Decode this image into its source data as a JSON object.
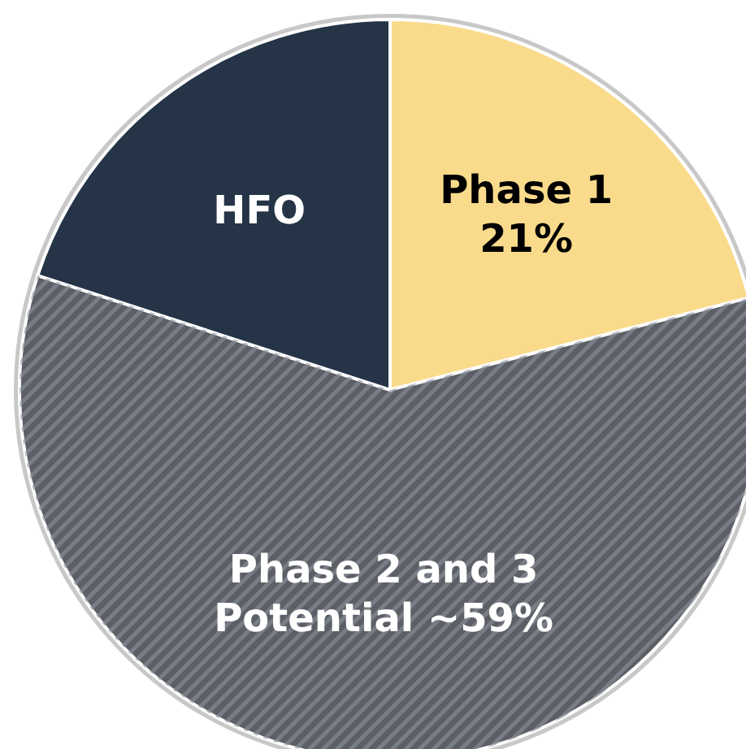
{
  "chart_data": {
    "type": "pie",
    "categories": [
      "Phase 1",
      "Phase 2 and 3 Potential",
      "HFO"
    ],
    "values": [
      21,
      59,
      20
    ],
    "value_labels": [
      "21%",
      "~59%",
      null
    ],
    "colors": [
      "#fadb8c",
      "#5c5f66",
      "#253447"
    ]
  }
}
